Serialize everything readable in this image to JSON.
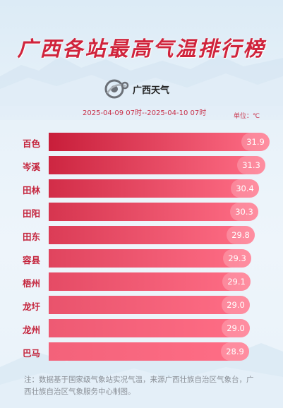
{
  "title": "广西各站最高气温排行榜",
  "logo": {
    "icon": "weather-service-logo-icon",
    "text": "广西天气"
  },
  "date_range": "2025-04-09 07时--2025-04-10 07时",
  "unit_label": "单位：℃",
  "footnote": "注：数据基于国家级气象站实况气温，来源广西壮族自治区气象台，广西壮族自治区气象服务中心制图。",
  "colors": {
    "title": "#d0243c",
    "bar_dark": "#c81e3a",
    "bar_light": "#f3627a",
    "label": "#c4233b"
  },
  "chart_data": {
    "type": "bar",
    "orientation": "horizontal",
    "categories": [
      "百色",
      "岑溪",
      "田林",
      "田阳",
      "田东",
      "容县",
      "梧州",
      "龙圩",
      "龙州",
      "巴马"
    ],
    "values": [
      31.9,
      31.3,
      30.4,
      30.3,
      29.8,
      29.3,
      29.1,
      29.0,
      29.0,
      28.9
    ],
    "value_labels": [
      "31.9",
      "31.3",
      "30.4",
      "30.3",
      "29.8",
      "29.3",
      "29.1",
      "29.0",
      "29.0",
      "28.9"
    ],
    "sort": "descending",
    "grid": false,
    "legend": "none"
  }
}
